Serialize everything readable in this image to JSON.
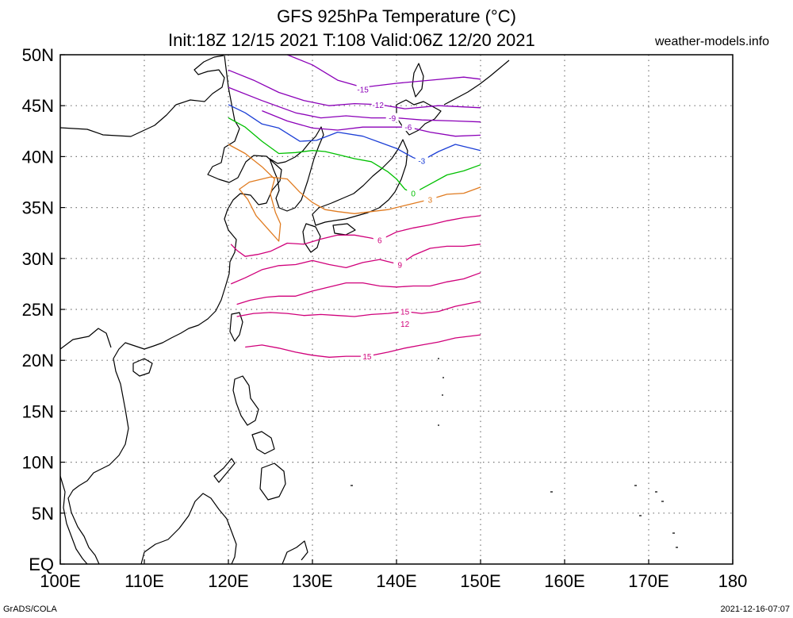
{
  "header": {
    "title": "GFS 925hPa Temperature (°C)",
    "subtitle": "Init:18Z 12/15 2021 T:108 Valid:06Z 12/20 2021",
    "credit": "weather-models.info"
  },
  "footer": {
    "left": "GrADS/COLA",
    "right": "2021-12-16-07:07"
  },
  "map": {
    "lon_range": [
      100,
      180
    ],
    "lat_range": [
      0,
      50
    ],
    "lon_ticks": [
      {
        "lon": 100,
        "label": "100E"
      },
      {
        "lon": 110,
        "label": "110E"
      },
      {
        "lon": 120,
        "label": "120E"
      },
      {
        "lon": 130,
        "label": "130E"
      },
      {
        "lon": 140,
        "label": "140E"
      },
      {
        "lon": 150,
        "label": "150E"
      },
      {
        "lon": 160,
        "label": "160E"
      },
      {
        "lon": 170,
        "label": "170E"
      },
      {
        "lon": 180,
        "label": "180"
      }
    ],
    "lat_ticks": [
      {
        "lat": 50,
        "label": "50N"
      },
      {
        "lat": 45,
        "label": "45N"
      },
      {
        "lat": 40,
        "label": "40N"
      },
      {
        "lat": 35,
        "label": "35N"
      },
      {
        "lat": 30,
        "label": "30N"
      },
      {
        "lat": 25,
        "label": "25N"
      },
      {
        "lat": 20,
        "label": "20N"
      },
      {
        "lat": 15,
        "label": "15N"
      },
      {
        "lat": 10,
        "label": "10N"
      },
      {
        "lat": 5,
        "label": "5N"
      },
      {
        "lat": 0,
        "label": "EQ"
      }
    ],
    "grid": "dotted",
    "data_domain": {
      "lon": [
        120,
        150
      ],
      "lat": [
        20,
        50
      ]
    },
    "contours": [
      {
        "value": "-15",
        "color": "#8b00b8",
        "label_at": [
          136.0,
          46.6
        ],
        "points": [
          [
            127,
            50
          ],
          [
            130,
            49
          ],
          [
            133,
            47.5
          ],
          [
            136,
            46.8
          ],
          [
            140,
            47.2
          ],
          [
            144,
            47.5
          ],
          [
            148,
            47.8
          ],
          [
            150,
            47.6
          ]
        ]
      },
      {
        "value": "-12",
        "color": "#8b00b8",
        "label_at": [
          137.8,
          45.1
        ],
        "points": [
          [
            120,
            48.5
          ],
          [
            123,
            47.5
          ],
          [
            126,
            46.3
          ],
          [
            129,
            45.5
          ],
          [
            132,
            45
          ],
          [
            135,
            45.2
          ],
          [
            138,
            45.1
          ],
          [
            141,
            44.7
          ],
          [
            145,
            45
          ],
          [
            150,
            44.8
          ]
        ]
      },
      {
        "value": "-9",
        "color": "#8b00b8",
        "label_at": [
          139.5,
          43.8
        ],
        "points": [
          [
            120,
            46.8
          ],
          [
            124,
            45.5
          ],
          [
            128,
            44.3
          ],
          [
            131,
            43.8
          ],
          [
            134,
            44
          ],
          [
            137,
            43.8
          ],
          [
            140,
            43.8
          ],
          [
            143,
            43.6
          ],
          [
            147,
            43.5
          ],
          [
            150,
            43.4
          ]
        ]
      },
      {
        "value": "-6",
        "color": "#8b00b8",
        "label_at": [
          141.4,
          42.9
        ],
        "points": [
          [
            124,
            44.5
          ],
          [
            127,
            43.5
          ],
          [
            130,
            42.8
          ],
          [
            133,
            42.6
          ],
          [
            136,
            42.9
          ],
          [
            139,
            42.9
          ],
          [
            141.4,
            42.9
          ],
          [
            144,
            42.4
          ],
          [
            147,
            42
          ],
          [
            150,
            42.1
          ]
        ]
      },
      {
        "value": "-3",
        "color": "#1c3fd6",
        "label_at": [
          143.0,
          39.6
        ],
        "points": [
          [
            120,
            45.1
          ],
          [
            122,
            44.3
          ],
          [
            124,
            43.2
          ],
          [
            126,
            42.8
          ],
          [
            128.5,
            41.5
          ],
          [
            130.5,
            41.6
          ],
          [
            133,
            42.4
          ],
          [
            136,
            42
          ],
          [
            138,
            41.4
          ],
          [
            140,
            40.8
          ],
          [
            142,
            39.9
          ],
          [
            143,
            39.6
          ],
          [
            145,
            40.5
          ],
          [
            147,
            41.2
          ],
          [
            150,
            40.6
          ]
        ]
      },
      {
        "value": "0",
        "color": "#00c000",
        "label_at": [
          142.0,
          36.4
        ],
        "points": [
          [
            120,
            43.8
          ],
          [
            122,
            42.9
          ],
          [
            124,
            41.5
          ],
          [
            126,
            40.3
          ],
          [
            128,
            40.4
          ],
          [
            130,
            40.6
          ],
          [
            131.5,
            40.5
          ],
          [
            133,
            40.2
          ],
          [
            135,
            39.8
          ],
          [
            137,
            39.5
          ],
          [
            139,
            38.5
          ],
          [
            140,
            37.8
          ],
          [
            141,
            36.8
          ],
          [
            142,
            36.4
          ],
          [
            144,
            37.3
          ],
          [
            146,
            38.2
          ],
          [
            148,
            38.6
          ],
          [
            150,
            39.2
          ]
        ]
      },
      {
        "value": "3",
        "color": "#e07b20",
        "label_at": [
          144.0,
          35.8
        ],
        "points": [
          [
            120,
            41.2
          ],
          [
            122,
            40.3
          ],
          [
            124,
            39
          ],
          [
            125.5,
            37.8
          ],
          [
            125,
            36.3
          ],
          [
            125.6,
            34.5
          ],
          [
            126.2,
            33.4
          ],
          [
            126,
            31.7
          ],
          [
            124.8,
            32.8
          ],
          [
            123.3,
            34.2
          ],
          [
            122.3,
            35.8
          ],
          [
            121.3,
            36.8
          ],
          [
            122.5,
            37.5
          ],
          [
            125,
            38
          ],
          [
            127,
            37.8
          ],
          [
            128.5,
            36.5
          ],
          [
            130,
            35.5
          ],
          [
            131.5,
            34.8
          ],
          [
            133,
            34.6
          ],
          [
            135,
            34.4
          ],
          [
            137,
            34.6
          ],
          [
            139,
            34.8
          ],
          [
            141,
            35.2
          ],
          [
            143,
            35.6
          ],
          [
            144,
            35.8
          ],
          [
            146,
            36.3
          ],
          [
            148,
            36.4
          ],
          [
            150,
            37
          ]
        ]
      },
      {
        "value": "6",
        "color": "#d0007a",
        "label_at": [
          138.0,
          31.8
        ],
        "points": [
          [
            120.3,
            31.4
          ],
          [
            121,
            30.8
          ],
          [
            122,
            30.2
          ],
          [
            123.5,
            30.4
          ],
          [
            125,
            30.7
          ],
          [
            127,
            31.5
          ],
          [
            129,
            31.4
          ],
          [
            131,
            31.9
          ],
          [
            133,
            32.3
          ],
          [
            135,
            32.3
          ],
          [
            137,
            32
          ],
          [
            138,
            31.8
          ],
          [
            140,
            32.6
          ],
          [
            142,
            33
          ],
          [
            144,
            33.3
          ],
          [
            146,
            33.7
          ],
          [
            148,
            34
          ],
          [
            150,
            34.2
          ]
        ]
      },
      {
        "value": "9",
        "color": "#d0007a",
        "label_at": [
          140.4,
          29.4
        ],
        "points": [
          [
            120.3,
            27.5
          ],
          [
            122,
            28.1
          ],
          [
            124,
            28.9
          ],
          [
            126,
            29.3
          ],
          [
            128,
            29.4
          ],
          [
            130,
            29.8
          ],
          [
            132,
            29.4
          ],
          [
            134,
            29.1
          ],
          [
            136,
            29.6
          ],
          [
            138,
            29.9
          ],
          [
            140.4,
            29.4
          ],
          [
            142,
            30.3
          ],
          [
            144,
            31
          ],
          [
            146,
            31.2
          ],
          [
            148,
            31.2
          ],
          [
            150,
            31.4
          ]
        ]
      },
      {
        "value": "12",
        "color": "#d0007a",
        "label_at": [
          141.0,
          23.6
        ],
        "points": [
          [
            121,
            25.5
          ],
          [
            122.6,
            25.9
          ],
          [
            124.5,
            26.2
          ],
          [
            126,
            26.3
          ],
          [
            128,
            26.3
          ],
          [
            130,
            26.8
          ],
          [
            132,
            27.2
          ],
          [
            134,
            27.6
          ],
          [
            136,
            27.6
          ],
          [
            138,
            27.3
          ],
          [
            140,
            27.2
          ],
          [
            142,
            27.3
          ],
          [
            144,
            27.3
          ],
          [
            146,
            27.7
          ],
          [
            148,
            28
          ],
          [
            150,
            28.6
          ]
        ]
      },
      {
        "value": "15",
        "color": "#d0007a",
        "label_at": [
          136.5,
          20.4
        ],
        "points": [
          [
            122,
            21.3
          ],
          [
            124,
            21.5
          ],
          [
            126,
            21.2
          ],
          [
            128,
            20.8
          ],
          [
            130,
            20.5
          ],
          [
            132,
            20.3
          ],
          [
            134,
            20.4
          ],
          [
            136.5,
            20.4
          ],
          [
            139,
            20.8
          ],
          [
            141,
            21.2
          ],
          [
            143,
            21.5
          ],
          [
            145,
            21.8
          ],
          [
            147,
            22.2
          ],
          [
            150,
            22.5
          ]
        ]
      },
      {
        "value": "15",
        "color": "#d0007a",
        "label_at": [
          141.0,
          24.8
        ],
        "points": [
          [
            121,
            24.3
          ],
          [
            123,
            24.6
          ],
          [
            125,
            24.7
          ],
          [
            127,
            24.6
          ],
          [
            129,
            24.4
          ],
          [
            131,
            24.5
          ],
          [
            133,
            24.4
          ],
          [
            135,
            24.3
          ],
          [
            137,
            24.5
          ],
          [
            139,
            24.6
          ],
          [
            141,
            24.8
          ],
          [
            143,
            24.6
          ],
          [
            145,
            24.8
          ],
          [
            147,
            25.3
          ],
          [
            150,
            25.8
          ]
        ]
      }
    ],
    "land_color": "#000000"
  }
}
